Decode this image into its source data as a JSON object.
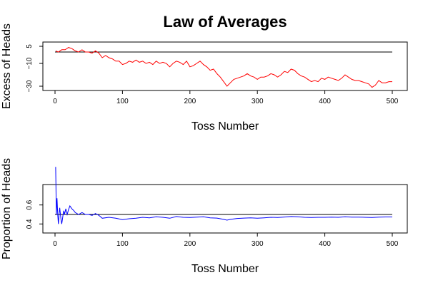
{
  "chart_data": [
    {
      "type": "line",
      "title": "Law of Averages",
      "xlabel": "Toss Number",
      "ylabel": "Excess of Heads",
      "xlim": [
        0,
        500
      ],
      "ylim": [
        -30,
        5
      ],
      "x_ticks": [
        "0",
        "100",
        "200",
        "300",
        "400",
        "500"
      ],
      "y_ticks": [
        "5",
        "−10",
        "−30"
      ],
      "reference_line": 0,
      "line_color": "#ff0000",
      "reference_color": "#000000",
      "grid": false,
      "series": [
        {
          "x": [
            1,
            5,
            10,
            15,
            20,
            25,
            30,
            35,
            40,
            45,
            50,
            55,
            60,
            65,
            70,
            75,
            80,
            85,
            90,
            95,
            100,
            105,
            110,
            115,
            120,
            125,
            130,
            135,
            140,
            145,
            150,
            155,
            160,
            165,
            170,
            175,
            180,
            185,
            190,
            195,
            200,
            205,
            210,
            215,
            220,
            225,
            230,
            235,
            240,
            245,
            250,
            255,
            260,
            265,
            270,
            275,
            280,
            285,
            290,
            295,
            300,
            305,
            310,
            315,
            320,
            325,
            330,
            335,
            340,
            345,
            350,
            355,
            360,
            365,
            370,
            375,
            380,
            385,
            390,
            395,
            400,
            405,
            410,
            415,
            420,
            425,
            430,
            435,
            440,
            445,
            450,
            455,
            460,
            465,
            470,
            475,
            480,
            485,
            490,
            495,
            500
          ],
          "values": [
            1,
            0,
            2,
            2,
            4,
            3,
            1,
            0,
            2,
            0,
            0,
            -1,
            1,
            -1,
            -5,
            -3,
            -5,
            -6,
            -8,
            -8,
            -11,
            -10,
            -8,
            -9,
            -7,
            -9,
            -8,
            -10,
            -9,
            -11,
            -8,
            -10,
            -9,
            -10,
            -13,
            -10,
            -8,
            -9,
            -11,
            -8,
            -13,
            -12,
            -10,
            -8,
            -11,
            -13,
            -16,
            -15,
            -19,
            -22,
            -26,
            -30,
            -27,
            -24,
            -23,
            -22,
            -21,
            -19,
            -21,
            -22,
            -24,
            -22,
            -22,
            -21,
            -19,
            -20,
            -22,
            -20,
            -17,
            -18,
            -15,
            -16,
            -19,
            -21,
            -22,
            -24,
            -26,
            -25,
            -26,
            -23,
            -24,
            -22,
            -23,
            -24,
            -25,
            -23,
            -20,
            -22,
            -24,
            -25,
            -25,
            -26,
            -27,
            -28,
            -31,
            -29,
            -25,
            -27,
            -27,
            -26,
            -26
          ]
        }
      ]
    },
    {
      "type": "line",
      "xlabel": "Toss Number",
      "ylabel": "Proportion of Heads",
      "xlim": [
        0,
        500
      ],
      "ylim": [
        0.35,
        0.77
      ],
      "x_ticks": [
        "0",
        "100",
        "200",
        "300",
        "400",
        "500"
      ],
      "y_ticks": [
        "0.4",
        "0.6"
      ],
      "reference_line": 0.5,
      "line_color": "#0000ff",
      "reference_color": "#000000",
      "grid": false,
      "series": [
        {
          "x": [
            1,
            2,
            3,
            4,
            5,
            6,
            7,
            8,
            9,
            10,
            11,
            12,
            13,
            14,
            15,
            16,
            18,
            20,
            22,
            25,
            28,
            30,
            35,
            40,
            45,
            50,
            55,
            60,
            65,
            70,
            80,
            90,
            100,
            110,
            120,
            130,
            140,
            150,
            160,
            170,
            180,
            190,
            200,
            210,
            220,
            230,
            240,
            250,
            255,
            260,
            270,
            280,
            290,
            300,
            310,
            320,
            330,
            340,
            350,
            360,
            370,
            380,
            390,
            400,
            410,
            420,
            430,
            440,
            450,
            460,
            470,
            480,
            490,
            500
          ],
          "values": [
            1.0,
            0.5,
            0.67,
            0.5,
            0.4,
            0.5,
            0.57,
            0.5,
            0.44,
            0.4,
            0.45,
            0.5,
            0.54,
            0.5,
            0.53,
            0.56,
            0.5,
            0.55,
            0.59,
            0.56,
            0.54,
            0.52,
            0.5,
            0.52,
            0.5,
            0.5,
            0.49,
            0.51,
            0.49,
            0.46,
            0.47,
            0.46,
            0.445,
            0.455,
            0.46,
            0.47,
            0.465,
            0.475,
            0.47,
            0.46,
            0.478,
            0.47,
            0.468,
            0.472,
            0.475,
            0.465,
            0.462,
            0.448,
            0.44,
            0.448,
            0.458,
            0.462,
            0.465,
            0.46,
            0.465,
            0.47,
            0.468,
            0.473,
            0.478,
            0.475,
            0.47,
            0.468,
            0.47,
            0.47,
            0.472,
            0.47,
            0.476,
            0.472,
            0.472,
            0.47,
            0.468,
            0.472,
            0.474,
            0.474
          ]
        }
      ]
    }
  ]
}
